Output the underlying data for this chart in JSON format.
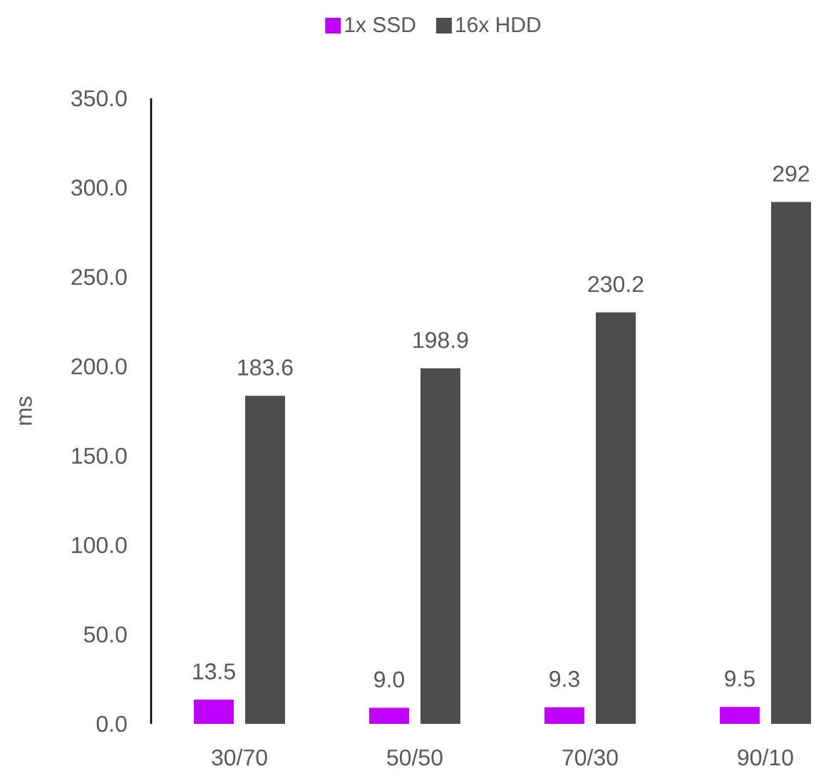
{
  "chart_data": {
    "type": "bar",
    "ylabel": "ms",
    "categories": [
      "30/70",
      "50/50",
      "70/30",
      "90/10"
    ],
    "series": [
      {
        "name": "1x SSD",
        "color": "#bf00ff",
        "values": [
          13.5,
          9.0,
          9.3,
          9.5
        ],
        "value_labels": [
          "13.5",
          "9.0",
          "9.3",
          "9.5"
        ]
      },
      {
        "name": "16x HDD",
        "color": "#4d4d4d",
        "values": [
          183.6,
          198.9,
          230.2,
          292
        ],
        "value_labels": [
          "183.6",
          "198.9",
          "230.2",
          "292"
        ]
      }
    ],
    "ylim": [
      0,
      350
    ],
    "yticks": [
      {
        "value": 0,
        "label": "0.0"
      },
      {
        "value": 50,
        "label": "50.0"
      },
      {
        "value": 100,
        "label": "100.0"
      },
      {
        "value": 150,
        "label": "150.0"
      },
      {
        "value": 200,
        "label": "200.0"
      },
      {
        "value": 250,
        "label": "250.0"
      },
      {
        "value": 300,
        "label": "300.0"
      },
      {
        "value": 350,
        "label": "350.0"
      }
    ],
    "legend": "top"
  }
}
